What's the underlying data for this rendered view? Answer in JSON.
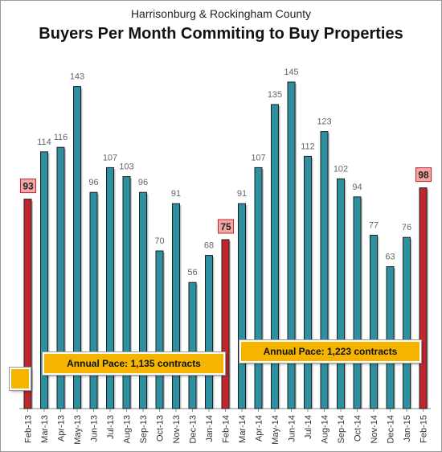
{
  "chart_data": {
    "type": "bar",
    "title": "Buyers Per Month Commiting to Buy Properties",
    "subtitle": "Harrisonburg & Rockingham County",
    "categories": [
      "Feb-13",
      "Mar-13",
      "Apr-13",
      "May-13",
      "Jun-13",
      "Jul-13",
      "Aug-13",
      "Sep-13",
      "Oct-13",
      "Nov-13",
      "Dec-13",
      "Jan-14",
      "Feb-14",
      "Mar-14",
      "Apr-14",
      "May-14",
      "Jun-14",
      "Jul-14",
      "Aug-14",
      "Sep-14",
      "Oct-14",
      "Nov-14",
      "Dec-14",
      "Jan-15",
      "Feb-15"
    ],
    "values": [
      93,
      114,
      116,
      143,
      96,
      107,
      103,
      96,
      70,
      91,
      56,
      68,
      75,
      91,
      107,
      135,
      145,
      112,
      123,
      102,
      94,
      77,
      63,
      76,
      98
    ],
    "highlighted": [
      "Feb-13",
      "Feb-14",
      "Feb-15"
    ],
    "ylim": [
      0,
      150
    ],
    "grid": false,
    "legend": "none",
    "colors": {
      "bar": "#2e8fa0",
      "highlight": "#c0272d",
      "label_box": "#f4a6a6",
      "pace_box": "#f5b400"
    },
    "annotations": {
      "pace_2013": "Annual Pace: 1,135 contracts",
      "pace_2014": "Annual Pace: 1,223 contracts"
    }
  }
}
